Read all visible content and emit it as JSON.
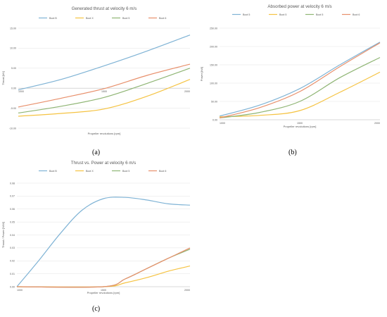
{
  "panels": {
    "a": "(a)",
    "b": "(b)",
    "c": "(c)"
  },
  "chart_data": [
    {
      "id": "a",
      "type": "line",
      "title": "Generated thrust at velocity 6 m/s",
      "xlabel": "Propeller revolutions [rpm]",
      "ylabel": "Thrust [kN]",
      "x_ticks": [
        "1000",
        "1500",
        "2000"
      ],
      "xlim": [
        1000,
        2000
      ],
      "ylim": [
        -10,
        15
      ],
      "y_ticks": [
        "15.00",
        "10.00",
        "5.00",
        "0.00",
        "-5.00",
        "-10.00"
      ],
      "grid": true,
      "legend_position": "top",
      "series": [
        {
          "name": "Boot B",
          "color": "#7fb3d5",
          "x": [
            1000,
            1250,
            1500,
            1750,
            2000
          ],
          "y": [
            -0.4,
            2.2,
            5.6,
            9.3,
            13.3
          ]
        },
        {
          "name": "Boot X",
          "color": "#f5c342",
          "x": [
            1000,
            1250,
            1500,
            1750,
            2000
          ],
          "y": [
            -7.0,
            -6.3,
            -5.2,
            -2.0,
            2.2
          ]
        },
        {
          "name": "Boot 5",
          "color": "#8fb574",
          "x": [
            1000,
            1250,
            1500,
            1750,
            2000
          ],
          "y": [
            -6.2,
            -4.5,
            -2.3,
            1.2,
            5.0
          ]
        },
        {
          "name": "Boot 6",
          "color": "#e8906c",
          "x": [
            1000,
            1250,
            1500,
            1750,
            2000
          ],
          "y": [
            -4.7,
            -2.5,
            -0.1,
            3.2,
            6.0
          ]
        }
      ]
    },
    {
      "id": "b",
      "type": "line",
      "title": "Absorbed power at velocity 6 m/s",
      "xlabel": "Propeller revolutions [rpm]",
      "ylabel": "Power [kW]",
      "x_ticks": [
        "1000",
        "1500",
        "2000"
      ],
      "xlim": [
        1000,
        2000
      ],
      "ylim": [
        0,
        250
      ],
      "y_ticks": [
        "250.00",
        "200.00",
        "150.00",
        "100.00",
        "50.00",
        "0.00"
      ],
      "grid": true,
      "legend_position": "top",
      "series": [
        {
          "name": "Boot 5",
          "color": "#7fb3d5",
          "x": [
            1000,
            1250,
            1500,
            1750,
            2000
          ],
          "y": [
            10,
            40,
            85,
            150,
            212
          ]
        },
        {
          "name": "Boot 5",
          "color": "#f5c342",
          "x": [
            1000,
            1250,
            1500,
            1750,
            2000
          ],
          "y": [
            8,
            12,
            25,
            75,
            130
          ]
        },
        {
          "name": "Boot 5",
          "color": "#8fb574",
          "x": [
            1000,
            1250,
            1500,
            1750,
            2000
          ],
          "y": [
            5,
            20,
            50,
            115,
            170
          ]
        },
        {
          "name": "Boot 6",
          "color": "#e8906c",
          "x": [
            1000,
            1250,
            1500,
            1750,
            2000
          ],
          "y": [
            5,
            33,
            77,
            145,
            210
          ]
        }
      ]
    },
    {
      "id": "c",
      "type": "line",
      "title": "Thrust vs. Power at velocity 6 m/s",
      "xlabel": "Propeller revolutions [rpm]",
      "ylabel": "Thrust / Power [N/W]",
      "x_ticks": [
        "1000",
        "1500",
        "2000"
      ],
      "xlim": [
        1000,
        2000
      ],
      "ylim": [
        0,
        0.08
      ],
      "y_ticks": [
        "0.08",
        "0.07",
        "0.06",
        "0.05",
        "0.04",
        "0.03",
        "0.02",
        "0.01",
        "0.00"
      ],
      "grid": true,
      "legend_position": "top",
      "series": [
        {
          "name": "Boot B",
          "color": "#7fb3d5",
          "x": [
            1000,
            1125,
            1250,
            1375,
            1500,
            1625,
            1750,
            1875,
            2000
          ],
          "y": [
            0.0,
            0.02,
            0.041,
            0.059,
            0.068,
            0.069,
            0.067,
            0.064,
            0.063
          ]
        },
        {
          "name": "Boot X",
          "color": "#f5c342",
          "x": [
            1000,
            1500,
            1625,
            1750,
            1875,
            2000
          ],
          "y": [
            0.0,
            0.0,
            0.003,
            0.007,
            0.012,
            0.016
          ]
        },
        {
          "name": "Boot 5",
          "color": "#8fb574",
          "x": [
            1000,
            1500,
            1625,
            1750,
            1875,
            2000
          ],
          "y": [
            0.0,
            0.0,
            0.006,
            0.014,
            0.022,
            0.029
          ]
        },
        {
          "name": "Boot 6",
          "color": "#e8906c",
          "x": [
            1000,
            1500,
            1625,
            1750,
            1875,
            2000
          ],
          "y": [
            0.0,
            0.0,
            0.006,
            0.014,
            0.022,
            0.03
          ]
        }
      ]
    }
  ]
}
